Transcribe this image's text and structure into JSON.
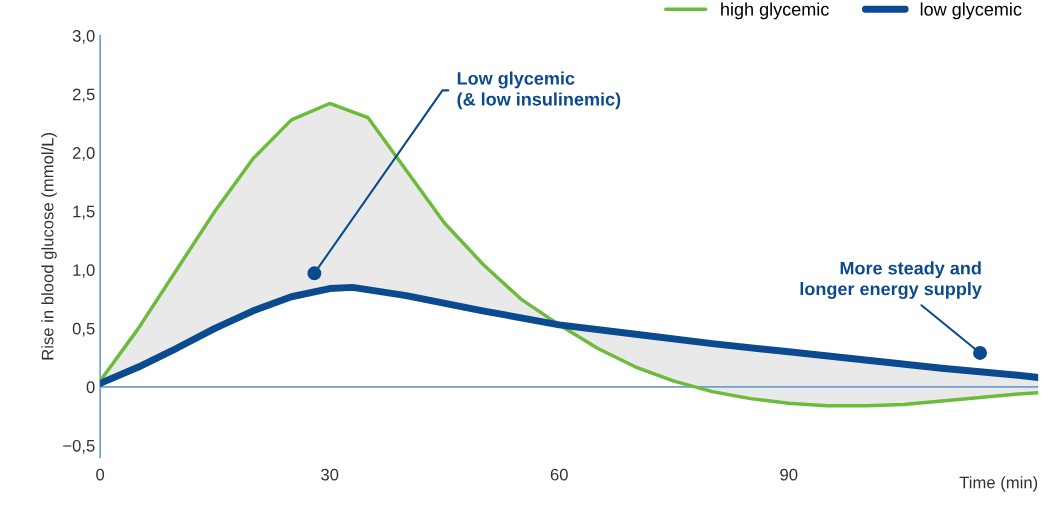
{
  "chart_data": {
    "type": "line",
    "xlabel": "Time (min)",
    "ylabel": "Rise in blood glucose (mmol/L)",
    "xlim": [
      0,
      122.6
    ],
    "xticks": [
      0,
      30,
      60,
      90
    ],
    "ylim": [
      -0.6,
      3.0
    ],
    "yticks": [
      {
        "value": -0.5,
        "label": "−0,5"
      },
      0,
      {
        "value": 0.5,
        "label": "0,5"
      },
      {
        "value": 1.0,
        "label": "1,0"
      },
      {
        "value": 1.5,
        "label": "1,5"
      },
      {
        "value": 2.0,
        "label": "2,0"
      },
      {
        "value": 2.5,
        "label": "2,5"
      },
      {
        "value": 3.0,
        "label": "3,0"
      }
    ],
    "series": [
      {
        "name": "high glycemic",
        "color": "#6cbb3c",
        "x": [
          0,
          5,
          10,
          15,
          20,
          25,
          30,
          35,
          40,
          45,
          50,
          55,
          60,
          65,
          70,
          75,
          80,
          85,
          90,
          95,
          100,
          105,
          110,
          115,
          120,
          122.6
        ],
        "values": [
          0.05,
          0.5,
          1.0,
          1.5,
          1.95,
          2.28,
          2.42,
          2.3,
          1.85,
          1.4,
          1.05,
          0.75,
          0.53,
          0.33,
          0.17,
          0.05,
          -0.04,
          -0.1,
          -0.14,
          -0.16,
          -0.16,
          -0.15,
          -0.12,
          -0.09,
          -0.06,
          -0.05
        ]
      },
      {
        "name": "low glycemic",
        "color": "#0b4a8f",
        "x": [
          0,
          5,
          10,
          15,
          20,
          25,
          30,
          33,
          40,
          50,
          60,
          70,
          80,
          90,
          100,
          110,
          120,
          122.6
        ],
        "values": [
          0.03,
          0.17,
          0.33,
          0.5,
          0.65,
          0.77,
          0.84,
          0.85,
          0.78,
          0.65,
          0.53,
          0.45,
          0.37,
          0.3,
          0.23,
          0.16,
          0.1,
          0.08
        ]
      }
    ],
    "ref_lines": [
      {
        "axis": "y",
        "value": 0,
        "color": "#6f9fd0"
      }
    ],
    "annotations": [
      {
        "text": "Low glycemic\n(& low insulinemic)",
        "x": 28,
        "y": 0.97
      },
      {
        "text": "More steady and\nlonger energy supply",
        "x": 115,
        "y": 0.29
      }
    ],
    "legend": "top right",
    "grid": false,
    "marker": "none",
    "line_style": "solid"
  }
}
